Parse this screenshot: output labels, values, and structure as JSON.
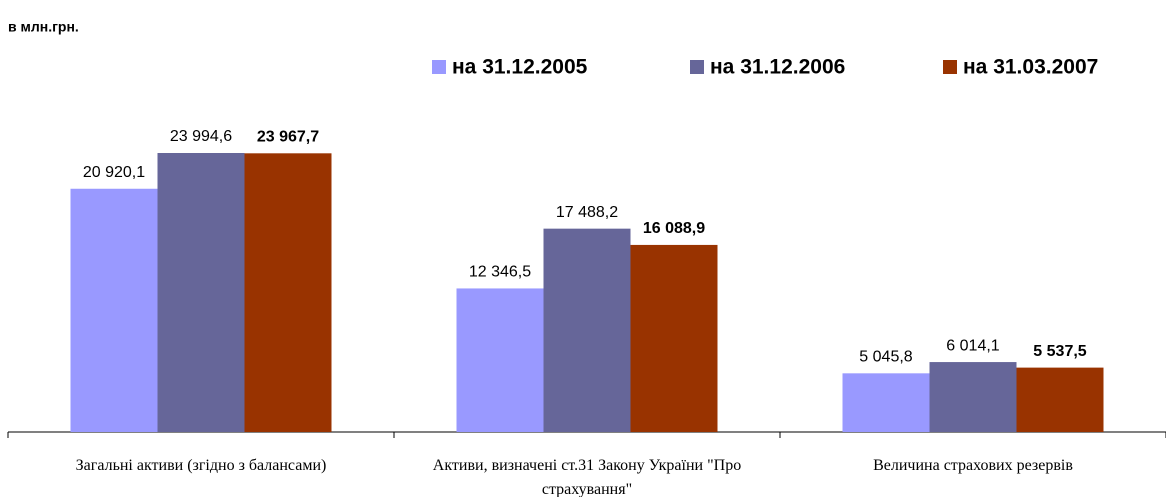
{
  "chart_data": {
    "type": "bar",
    "title": "в млн.грн.",
    "categories": [
      "Загальні активи (згідно з балансами)",
      "Активи, визначені ст.31 Закону України \"Про страхування\"",
      "Величина страхових резервів"
    ],
    "series": [
      {
        "name": "на 31.12.2005",
        "color": "#9999ff",
        "values": [
          20920.1,
          12346.5,
          5045.8
        ],
        "value_labels": [
          "20 920,1",
          "12 346,5",
          "5 045,8"
        ]
      },
      {
        "name": "на 31.12.2006",
        "color": "#666699",
        "values": [
          23994.6,
          17488.2,
          6014.1
        ],
        "value_labels": [
          "23 994,6",
          "17 488,2",
          "6 014,1"
        ]
      },
      {
        "name": "на 31.03.2007",
        "color": "#993300",
        "values": [
          23967.7,
          16088.9,
          5537.5
        ],
        "value_labels": [
          "23 967,7",
          "16 088,9",
          "5 537,5"
        ]
      }
    ]
  }
}
